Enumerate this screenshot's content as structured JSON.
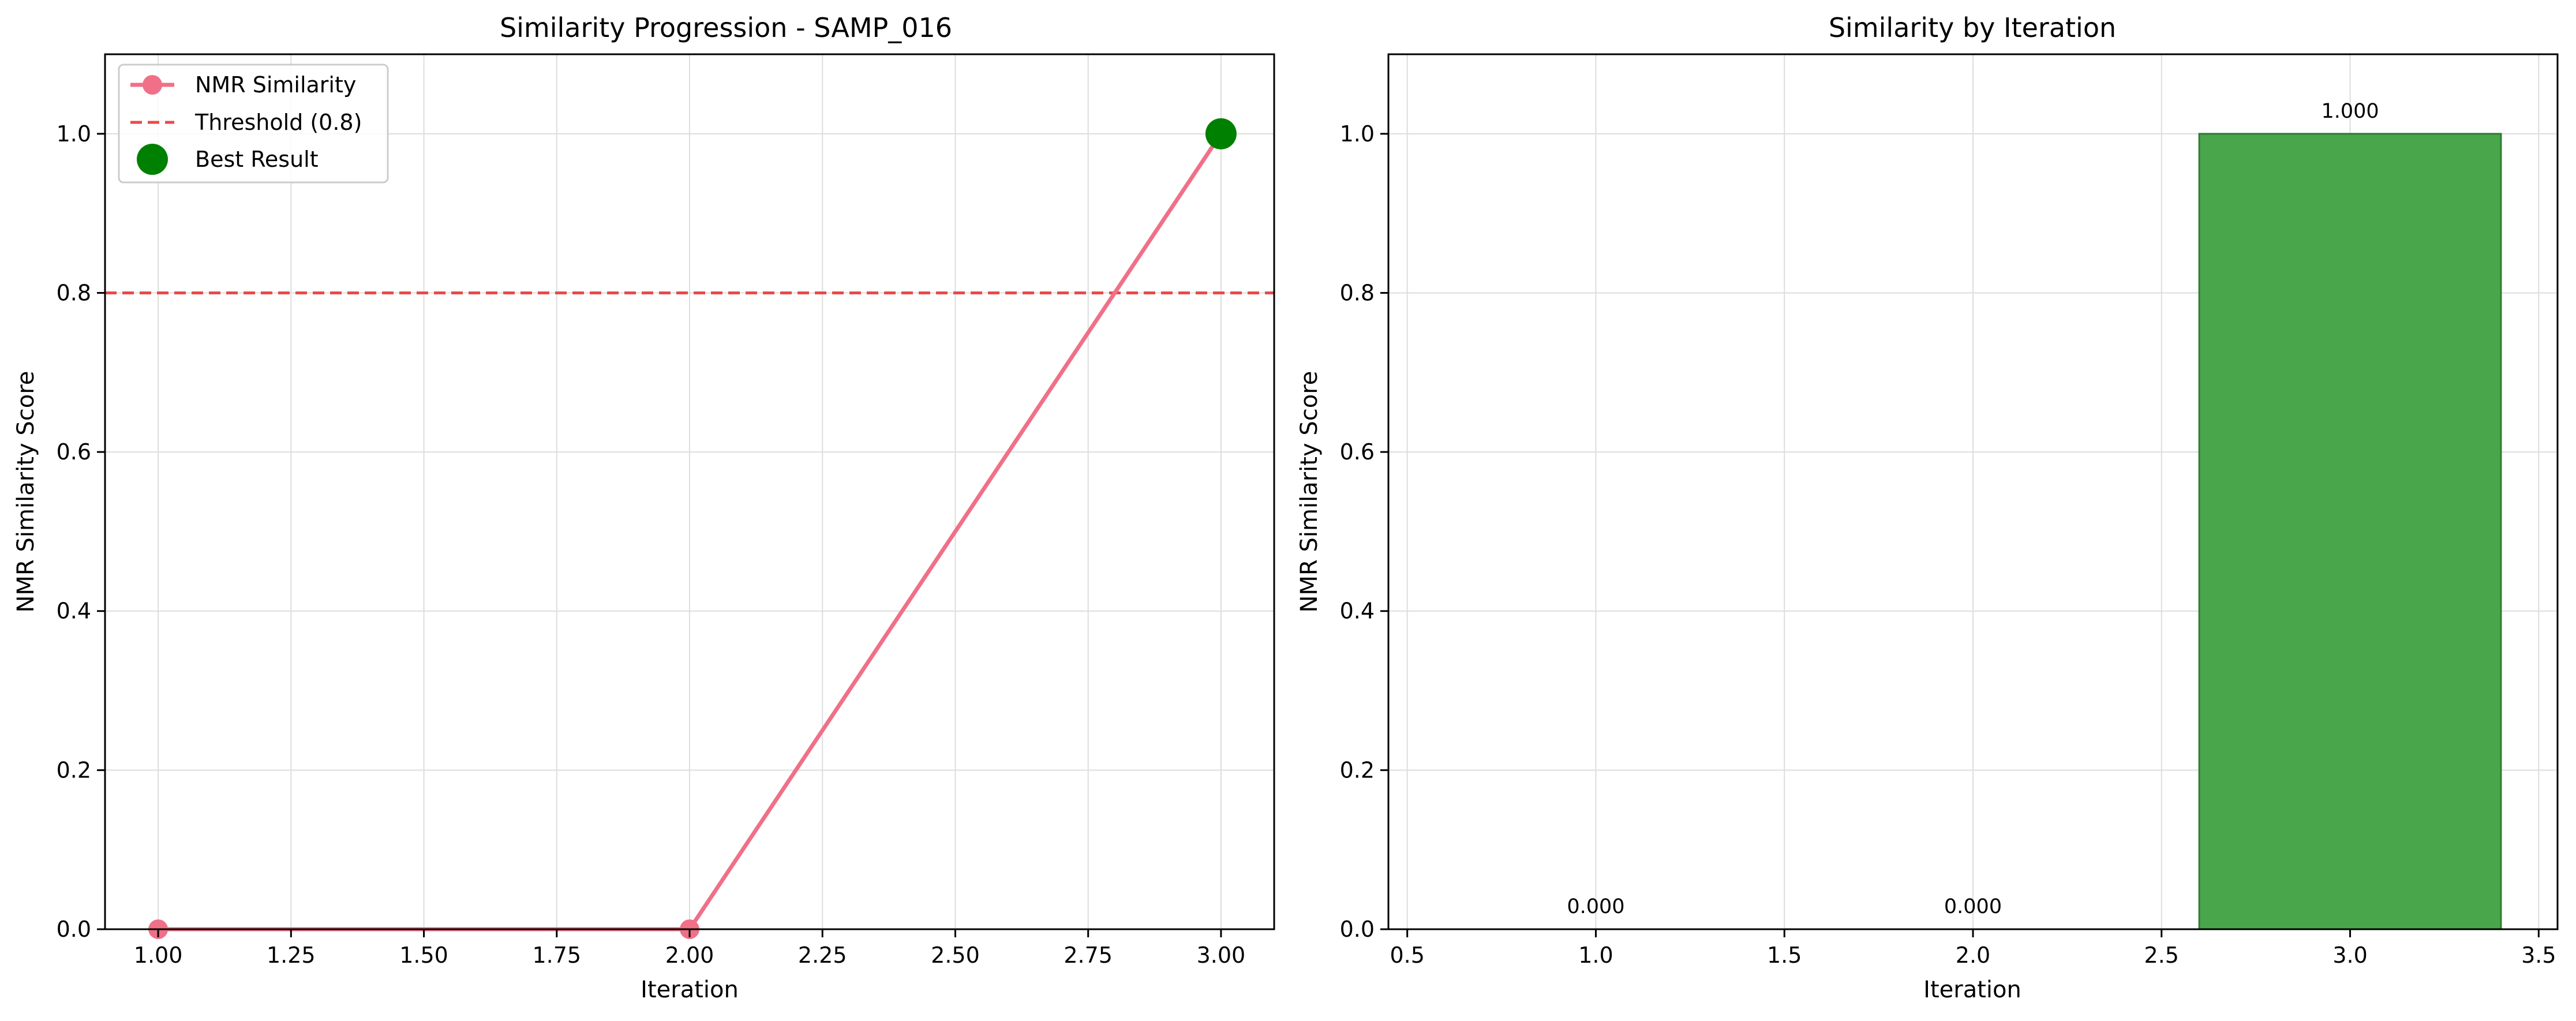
{
  "chart_data": [
    {
      "type": "line",
      "title": "Similarity Progression - SAMP_016",
      "xlabel": "Iteration",
      "ylabel": "NMR Similarity Score",
      "xlim": [
        0.9,
        3.1
      ],
      "ylim": [
        0.0,
        1.1
      ],
      "xticks": [
        "1.00",
        "1.25",
        "1.50",
        "1.75",
        "2.00",
        "2.25",
        "2.50",
        "2.75",
        "3.00"
      ],
      "yticks": [
        "0.0",
        "0.2",
        "0.4",
        "0.6",
        "0.8",
        "1.0"
      ],
      "grid": true,
      "legend_position": "top-left",
      "series": [
        {
          "name": "NMR Similarity",
          "x": [
            1,
            2,
            3
          ],
          "y": [
            0.0,
            0.0,
            1.0
          ],
          "color": "#f07088"
        }
      ],
      "threshold": {
        "name": "Threshold (0.8)",
        "y": 0.8,
        "color": "#e84a4a"
      },
      "best_result": {
        "name": "Best Result",
        "x": 3,
        "y": 1.0,
        "color": "#008000"
      }
    },
    {
      "type": "bar",
      "title": "Similarity by Iteration",
      "xlabel": "Iteration",
      "ylabel": "NMR Similarity Score",
      "xlim": [
        0.45,
        3.55
      ],
      "ylim": [
        0.0,
        1.1
      ],
      "xticks": [
        "0.5",
        "1.0",
        "1.5",
        "2.0",
        "2.5",
        "3.0",
        "3.5"
      ],
      "yticks": [
        "0.0",
        "0.2",
        "0.4",
        "0.6",
        "0.8",
        "1.0"
      ],
      "grid": true,
      "bars": [
        {
          "x": 1,
          "value": 0.0,
          "label": "0.000",
          "color": "#b03030"
        },
        {
          "x": 2,
          "value": 0.0,
          "label": "0.000",
          "color": "#b03030"
        },
        {
          "x": 3,
          "value": 1.0,
          "label": "1.000",
          "color": "#4aa64a"
        }
      ]
    }
  ]
}
